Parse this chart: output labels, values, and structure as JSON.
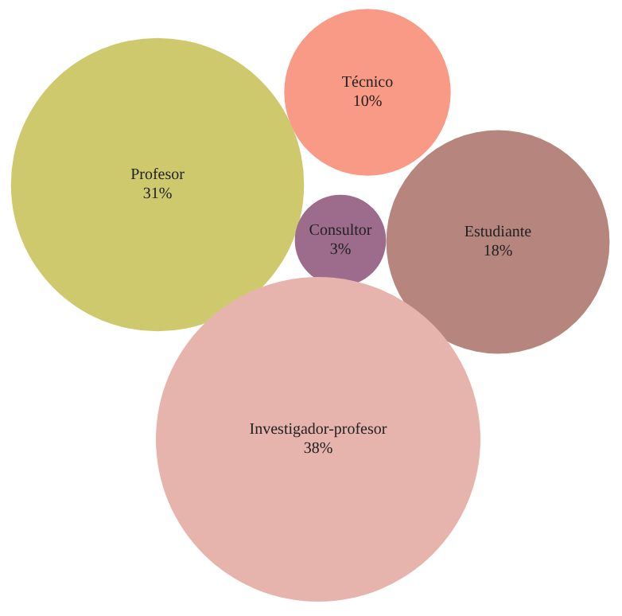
{
  "chart_data": {
    "type": "other",
    "categories": [
      "Profesor",
      "Técnico",
      "Consultor",
      "Estudiante",
      "Investigador-profesor"
    ],
    "values": [
      31,
      10,
      3,
      18,
      38
    ],
    "value_labels": [
      "31%",
      "10%",
      "3%",
      "18%",
      "38%"
    ],
    "colors": [
      "#cfc96e",
      "#f99a86",
      "#9d6b8c",
      "#b5857e",
      "#e7b4ad"
    ]
  }
}
